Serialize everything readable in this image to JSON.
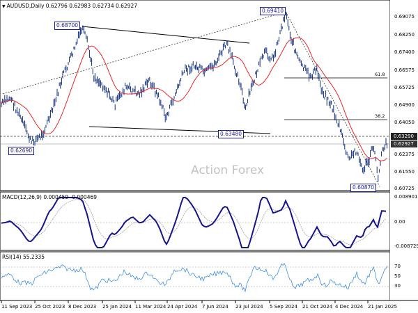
{
  "main_chart": {
    "header": "AUDUSD,Daily  0.62796 0.62983 0.62734 0.62927",
    "watermark": "Action Forex",
    "price_axis": [
      "0.69075",
      "0.68250",
      "0.67400",
      "0.66575",
      "0.65725",
      "0.64900",
      "0.64050",
      "0.63290",
      "0.62927",
      "0.62375",
      "0.61550",
      "0.60725"
    ],
    "price_boxes": {
      "prev": "0.63290",
      "last": "0.62927"
    },
    "annotations": [
      "0.68700",
      "0.69410",
      "0.62690",
      "0.63480",
      "0.60870"
    ],
    "fib_labels": [
      "61.8",
      "38.2"
    ],
    "colors": {
      "candles": "#0b2a7a",
      "ma": "#e8262a",
      "trendline": "#000000",
      "label_border": "#1a1aa0"
    }
  },
  "macd": {
    "header": "MACD(12,26,9) 0.000459 -0.000469",
    "axis": [
      "0.008901",
      "0.00",
      "-0.008729"
    ],
    "colors": {
      "macd": "#14148c",
      "signal": "#a0a0a0"
    }
  },
  "rsi": {
    "header": "RSI(14) 55.2335",
    "axis": [
      "70",
      "50",
      "30"
    ],
    "colors": {
      "rsi": "#3c8fe0"
    }
  },
  "date_axis": [
    "11 Sep 2023",
    "25 Oct 2023",
    "8 Dec 2023",
    "25 Jan 2024",
    "11 Mar 2024",
    "24 Apr 2024",
    "7 Jun 2024",
    "23 Jul 2024",
    "5 Sep 2024",
    "21 Oct 2024",
    "4 Dec 2024",
    "21 Jan 2025"
  ]
}
